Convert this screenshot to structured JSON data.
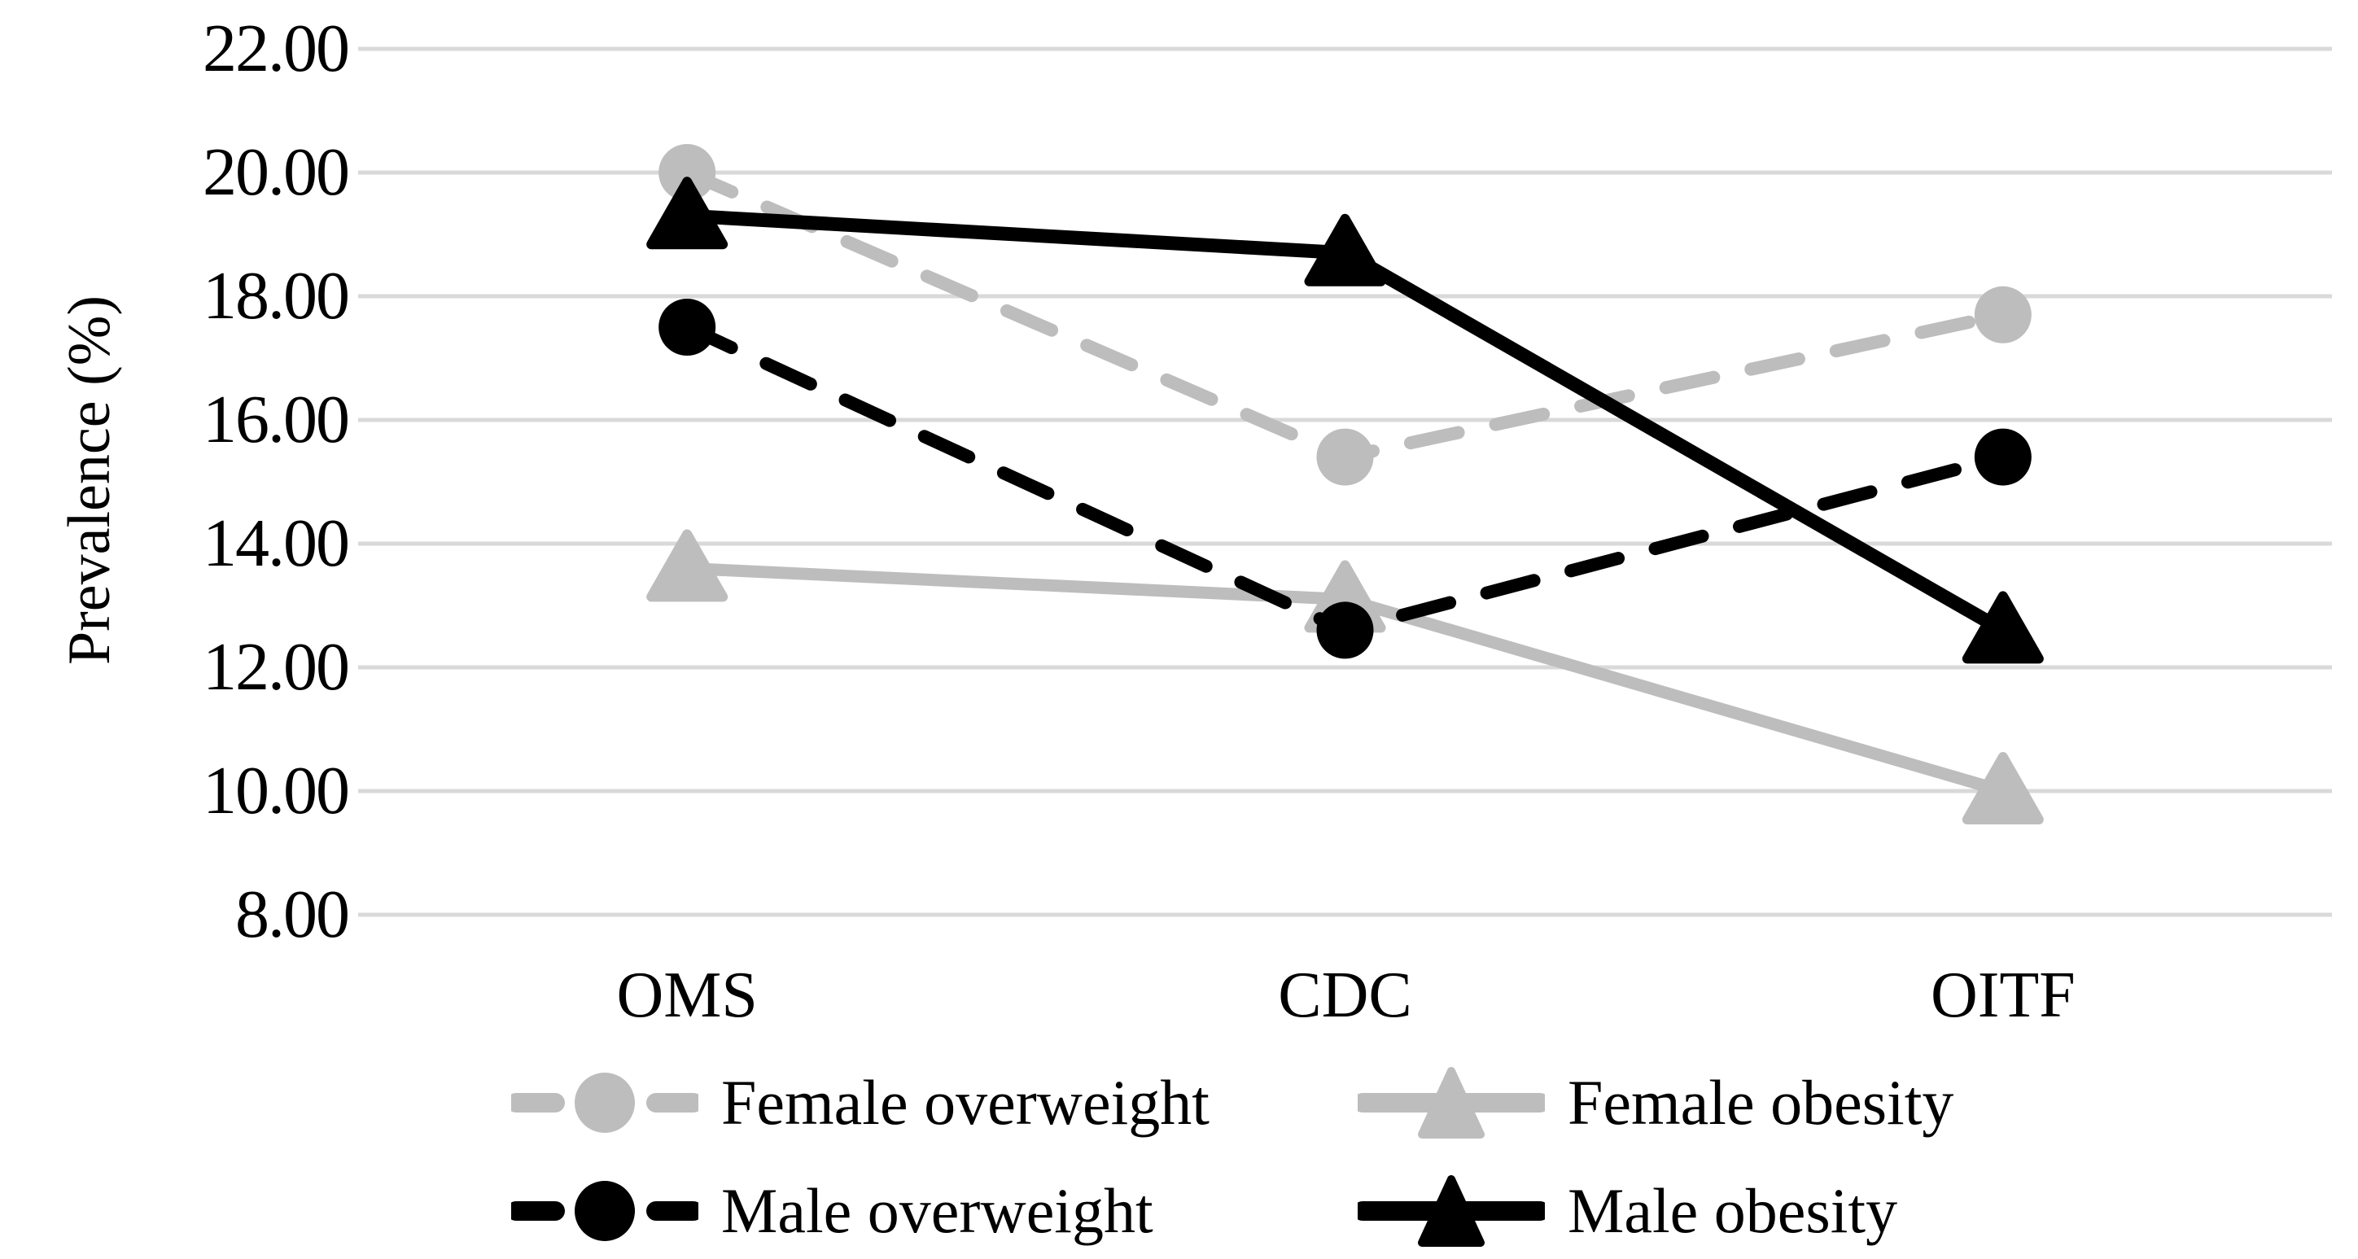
{
  "figure": {
    "background_color": "#FFFFFF",
    "text_color": "#000000"
  },
  "chart_data": {
    "type": "line",
    "title": "",
    "xlabel": "",
    "ylabel": "Prevalence (%)",
    "categories": [
      "OMS",
      "CDC",
      "OITF"
    ],
    "series": [
      {
        "name": "Female overweight",
        "color": "#BDBDBD",
        "line_style": "dashed",
        "marker": "circle",
        "values": [
          20.0,
          15.4,
          17.7
        ]
      },
      {
        "name": "Female obesity",
        "color": "#BDBDBD",
        "line_style": "solid",
        "marker": "triangle",
        "values": [
          13.6,
          13.1,
          10.0
        ]
      },
      {
        "name": "Male overweight",
        "color": "#000000",
        "line_style": "dashed",
        "marker": "circle",
        "values": [
          17.5,
          12.6,
          15.4
        ]
      },
      {
        "name": "Male obesity",
        "color": "#000000",
        "line_style": "solid",
        "marker": "triangle",
        "values": [
          19.3,
          18.7,
          12.6
        ]
      }
    ],
    "ylim": [
      8,
      22
    ],
    "ytick_step": 2,
    "ytick_labels": [
      "22.00",
      "20.00",
      "18.00",
      "16.00",
      "14.00",
      "12.00",
      "10.00",
      "8.00"
    ],
    "grid": true,
    "gridline_color": "#D9D9D9",
    "legend_position": "bottom",
    "legend_rows": [
      [
        "Female overweight",
        "Female obesity"
      ],
      [
        "Male overweight",
        "Male obesity"
      ]
    ]
  }
}
